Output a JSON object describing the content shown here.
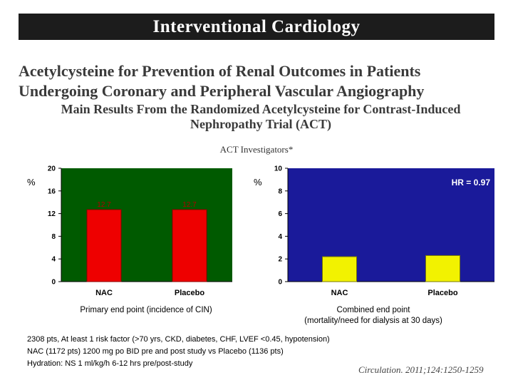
{
  "header": {
    "banner": "Interventional Cardiology"
  },
  "article": {
    "title_line1": "Acetylcysteine for Prevention of Renal Outcomes in Patients",
    "title_line2": "Undergoing Coronary and Peripheral Vascular Angiography",
    "subtitle_line1": "Main Results From the Randomized Acetylcysteine for Contrast-Induced",
    "subtitle_line2": "Nephropathy Trial (ACT)",
    "authors": "ACT Investigators*"
  },
  "chart_data": [
    {
      "type": "bar",
      "categories": [
        "NAC",
        "Placebo"
      ],
      "values": [
        12.7,
        12.7
      ],
      "data_labels": [
        "12.7",
        "12.7"
      ],
      "ylabel": "%",
      "ylim": [
        0,
        20
      ],
      "yticks": [
        "0",
        "4",
        "8",
        "12",
        "16",
        "20"
      ],
      "grid": false,
      "caption": "Primary end point (incidence of CIN)",
      "colors": {
        "plot_bg": "#005a00",
        "bar": "#ee0000",
        "bar_edge": "#8a0000",
        "label": "#b00000"
      }
    },
    {
      "type": "bar",
      "categories": [
        "NAC",
        "Placebo"
      ],
      "values": [
        2.2,
        2.3
      ],
      "ylabel": "%",
      "ylim": [
        0,
        10
      ],
      "yticks": [
        "0",
        "2",
        "4",
        "6",
        "8",
        "10"
      ],
      "grid": false,
      "annotation": "HR = 0.97",
      "caption_line1": "Combined end point",
      "caption_line2": "(mortality/need for dialysis at 30 days)",
      "colors": {
        "plot_bg": "#1a1a9a",
        "bar": "#f2f200",
        "bar_edge": "#7a7a00",
        "label": "#ffffff"
      }
    }
  ],
  "notes": [
    "2308 pts, At least 1 risk factor (>70 yrs, CKD, diabetes, CHF, LVEF <0.45, hypotension)",
    "NAC (1172 pts) 1200 mg po BID pre and post study vs Placebo (1136 pts)",
    "Hydration: NS 1 ml/kg/h 6-12 hrs pre/post-study"
  ],
  "citation": "Circulation. 2011;124:1250-1259"
}
